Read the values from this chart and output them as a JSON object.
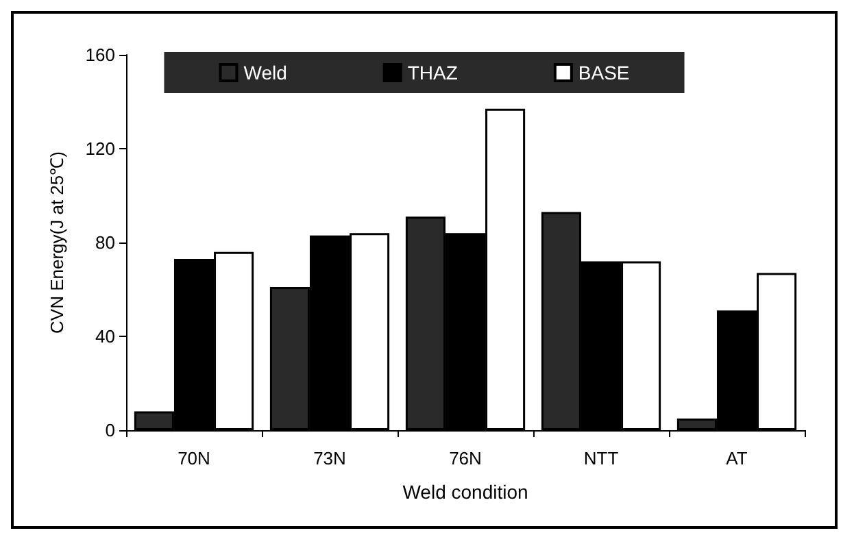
{
  "chart_data": {
    "type": "bar",
    "xlabel": "Weld condition",
    "ylabel": "CVN Energy(J at 25℃)",
    "categories": [
      "70N",
      "73N",
      "76N",
      "NTT",
      "AT"
    ],
    "series": [
      {
        "name": "Weld",
        "color": "#2a2a2a",
        "values": [
          8,
          61,
          91,
          93,
          5
        ]
      },
      {
        "name": "THAZ",
        "color": "#000000",
        "values": [
          73,
          83,
          84,
          72,
          51
        ]
      },
      {
        "name": "BASE",
        "color": "#ffffff",
        "values": [
          76,
          84,
          137,
          72,
          67
        ]
      }
    ],
    "ylim": [
      0,
      160
    ],
    "yticks": [
      0,
      40,
      80,
      120,
      160
    ],
    "grid": false,
    "legend": "top"
  }
}
